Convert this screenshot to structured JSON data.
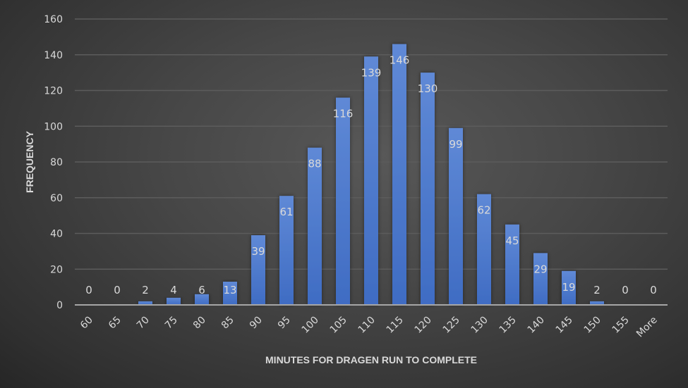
{
  "chart_data": {
    "type": "bar",
    "title": "",
    "xlabel": "MINUTES FOR DRAGEN RUN TO COMPLETE",
    "ylabel": "FREQUENCY",
    "categories": [
      "60",
      "65",
      "70",
      "75",
      "80",
      "85",
      "90",
      "95",
      "100",
      "105",
      "110",
      "115",
      "120",
      "125",
      "130",
      "135",
      "140",
      "145",
      "150",
      "155",
      "More"
    ],
    "values": [
      0,
      0,
      2,
      4,
      6,
      13,
      39,
      61,
      88,
      116,
      139,
      146,
      130,
      99,
      62,
      45,
      29,
      19,
      2,
      0,
      0
    ],
    "ylim": [
      0,
      160
    ],
    "yticks": [
      0,
      20,
      40,
      60,
      80,
      100,
      120,
      140,
      160
    ],
    "grid": true,
    "legend": "none",
    "bar_color": "#4a78cc"
  }
}
